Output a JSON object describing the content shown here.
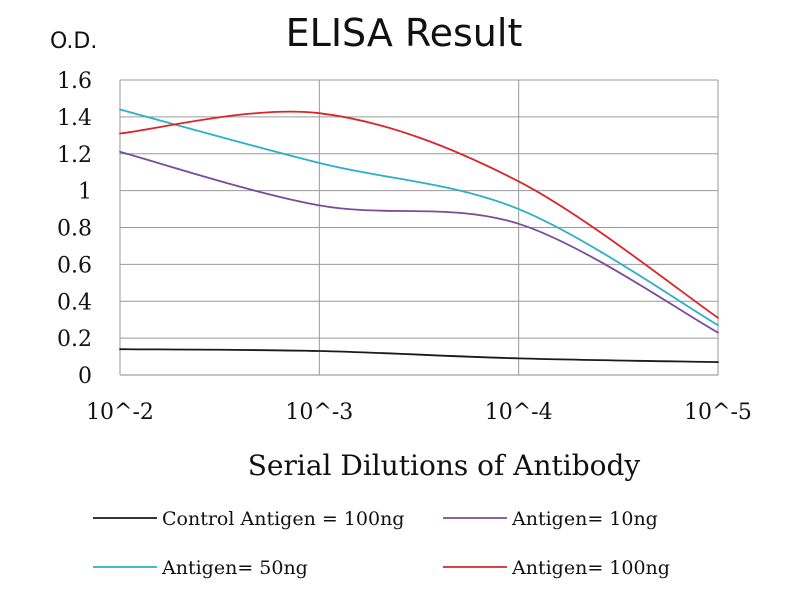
{
  "chart_data": {
    "type": "line",
    "title": "ELISA Result",
    "ylabel": "O.D.",
    "xlabel": "Serial  Dilutions  of Antibody",
    "categories": [
      "10^-2",
      "10^-3",
      "10^-4",
      "10^-5"
    ],
    "yticks": [
      "0",
      "0.2",
      "0.4",
      "0.6",
      "0.8",
      "1",
      "1.2",
      "1.4",
      "1.6"
    ],
    "ylim": [
      0,
      1.6
    ],
    "grid": true,
    "legend_position": "bottom",
    "series": [
      {
        "name": "Control Antigen = 100ng",
        "color": "#1a1a1a",
        "values": [
          0.14,
          0.13,
          0.09,
          0.07
        ]
      },
      {
        "name": "Antigen= 10ng",
        "color": "#7a4c9c",
        "values": [
          1.21,
          0.92,
          0.82,
          0.23
        ]
      },
      {
        "name": "Antigen= 50ng",
        "color": "#2bb0c4",
        "values": [
          1.44,
          1.15,
          0.9,
          0.27
        ]
      },
      {
        "name": "Antigen= 100ng",
        "color": "#d9262a",
        "values": [
          1.31,
          1.42,
          1.05,
          0.31
        ]
      }
    ]
  }
}
